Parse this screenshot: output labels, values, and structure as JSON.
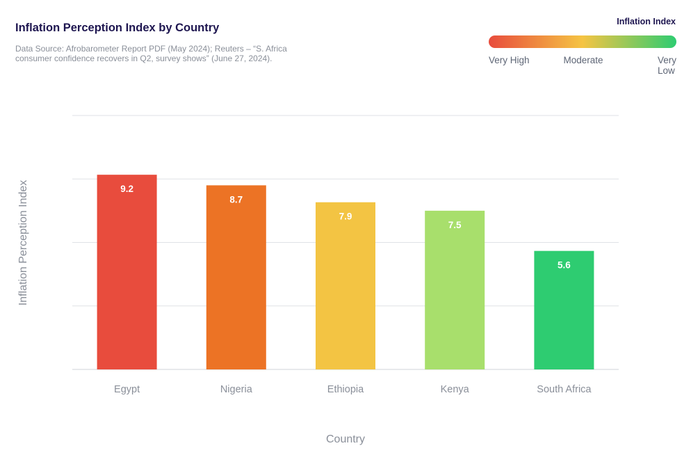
{
  "header": {
    "title": "Inflation Perception Index by Country",
    "subtitle": "Data Source: Afrobarometer Report PDF (May 2024); Reuters – “S. Africa consumer confidence recovers in Q2, survey shows” (June 27, 2024)."
  },
  "legend": {
    "title": "Inflation Index",
    "low_label": "Very High",
    "mid_label": "Moderate",
    "high_label": "Very Low",
    "gradient_colors": [
      "#e84c3d",
      "#f5c443",
      "#2ecc71"
    ]
  },
  "chart_data": {
    "type": "bar",
    "categories": [
      "Egypt",
      "Nigeria",
      "Ethiopia",
      "Kenya",
      "South Africa"
    ],
    "values": [
      9.2,
      8.7,
      7.9,
      7.5,
      5.6
    ],
    "colors": [
      "#e84c3d",
      "#ec7325",
      "#f3c443",
      "#a8df6c",
      "#2ecc71"
    ],
    "data_labels": [
      "9.2",
      "8.7",
      "7.9",
      "7.5",
      "5.6"
    ],
    "xlabel": "Country",
    "ylabel": "Inflation Perception Index",
    "ylim": [
      0,
      12
    ],
    "grid": true,
    "gridline_values": [
      0,
      3,
      6,
      9,
      12
    ],
    "legend_position": "top-right",
    "y_tick_labels_shown": false
  }
}
